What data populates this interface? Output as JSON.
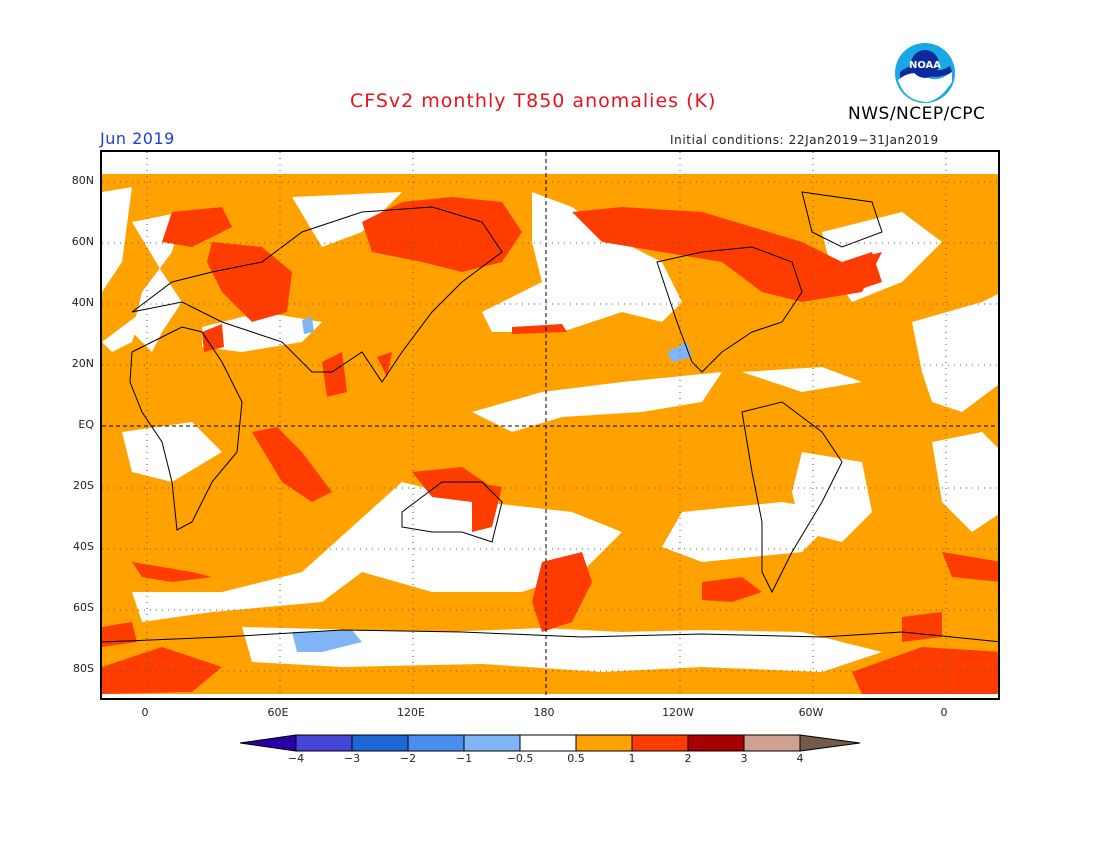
{
  "header": {
    "title": "CFSv2 monthly T850 anomalies (K)",
    "org": "NWS/NCEP/CPC",
    "month": "Jun 2019",
    "initial_conditions": "Initial conditions: 22Jan2019−31Jan2019",
    "logo_text": "NOAA"
  },
  "axes": {
    "lat_labels": [
      "80N",
      "60N",
      "40N",
      "20N",
      "EQ",
      "20S",
      "40S",
      "60S",
      "80S"
    ],
    "lon_labels": [
      "0",
      "60E",
      "120E",
      "180",
      "120W",
      "60W",
      "0"
    ]
  },
  "colorbar": {
    "labels": [
      "−4",
      "−3",
      "−2",
      "−1",
      "−0.5",
      "0.5",
      "1",
      "2",
      "3",
      "4"
    ],
    "colors": [
      "#2a00a6",
      "#4646d6",
      "#1c66d6",
      "#4a8ff0",
      "#7fb5f5",
      "#ffffff",
      "#ffa200",
      "#ff3c00",
      "#a80000",
      "#cfa190",
      "#735a4b"
    ]
  },
  "legend_colors": {
    "ocean_white": "#ffffff",
    "orange": "#ffa200",
    "red": "#ff3c00",
    "light_blue": "#7fb5f5"
  }
}
